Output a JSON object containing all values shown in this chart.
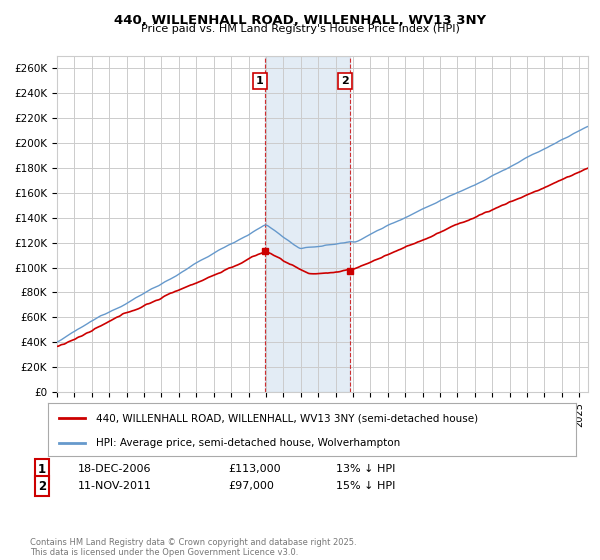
{
  "title": "440, WILLENHALL ROAD, WILLENHALL, WV13 3NY",
  "subtitle": "Price paid vs. HM Land Registry's House Price Index (HPI)",
  "legend_line1": "440, WILLENHALL ROAD, WILLENHALL, WV13 3NY (semi-detached house)",
  "legend_line2": "HPI: Average price, semi-detached house, Wolverhampton",
  "annotation1_label": "1",
  "annotation1_date": "18-DEC-2006",
  "annotation1_price": "£113,000",
  "annotation1_pct": "13% ↓ HPI",
  "annotation2_label": "2",
  "annotation2_date": "11-NOV-2011",
  "annotation2_price": "£97,000",
  "annotation2_pct": "15% ↓ HPI",
  "copyright_text": "Contains HM Land Registry data © Crown copyright and database right 2025.\nThis data is licensed under the Open Government Licence v3.0.",
  "price_color": "#cc0000",
  "hpi_color": "#6699cc",
  "highlight_color": "#ddeeff",
  "annotation_box_color": "#cc0000",
  "vline_color": "#cc0000",
  "ylim": [
    0,
    270000
  ],
  "yticks": [
    0,
    20000,
    40000,
    60000,
    80000,
    100000,
    120000,
    140000,
    160000,
    180000,
    200000,
    220000,
    240000,
    260000
  ],
  "grid_color": "#cccccc",
  "background_color": "#ffffff",
  "sale1_year": 2006.96,
  "sale1_price": 113000,
  "sale2_year": 2011.85,
  "sale2_price": 97000
}
